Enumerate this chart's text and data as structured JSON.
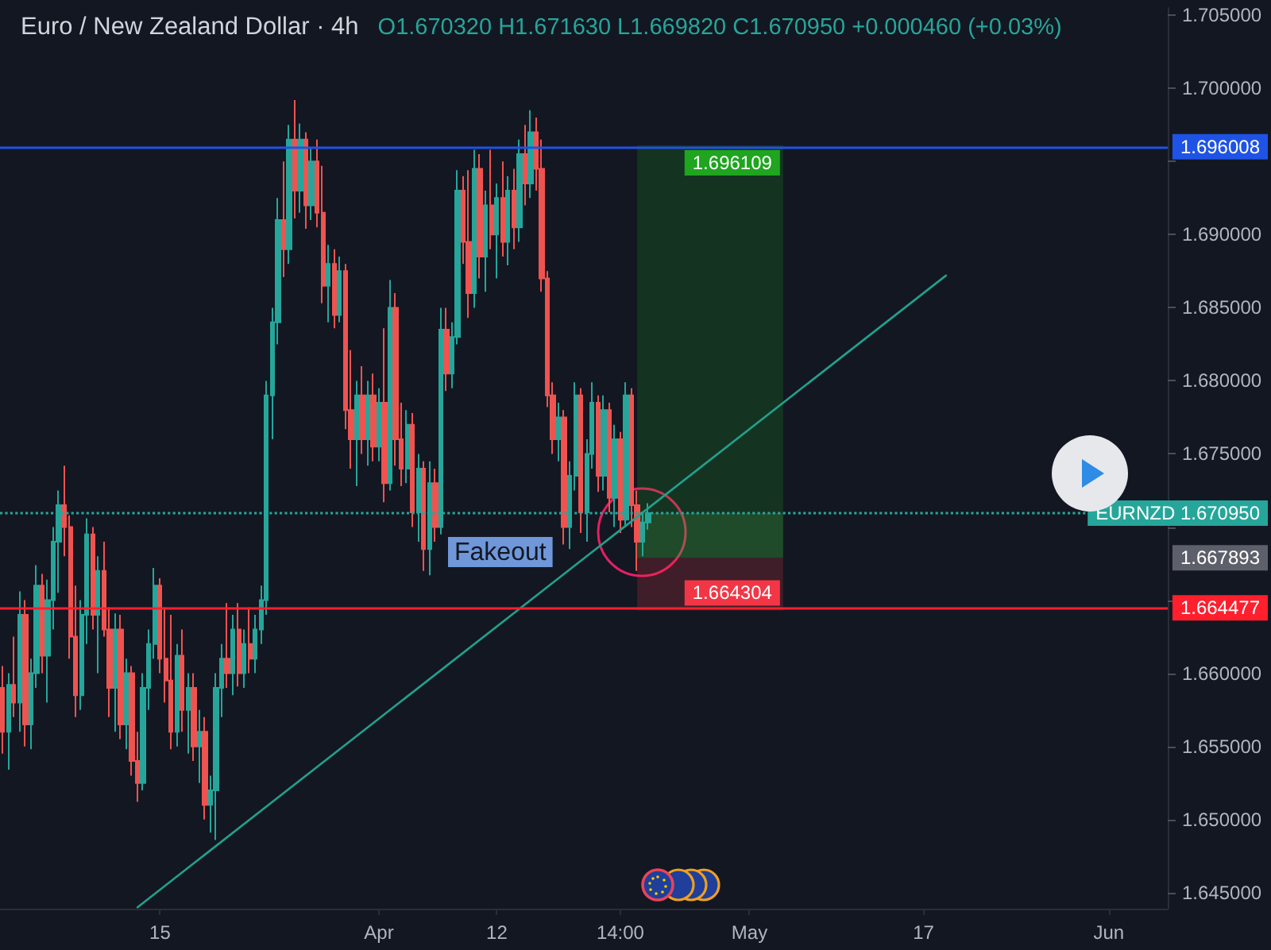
{
  "chart_data": {
    "type": "candlestick",
    "title": "Euro / New Zealand Dollar · 4h",
    "subtitle": "O1.670320 H1.671630 L1.669820 C1.670950 +0.000460 (+0.03%)",
    "categories": [
      null,
      null,
      null,
      null,
      null,
      null,
      null,
      null,
      null,
      null,
      null,
      null,
      null,
      null,
      null,
      null,
      null,
      null,
      null,
      null,
      null,
      null,
      null,
      null,
      null,
      null,
      null,
      null,
      "15",
      null,
      null,
      null,
      null,
      null,
      null,
      null,
      null,
      null,
      null,
      null,
      null,
      null,
      null,
      null,
      null,
      null,
      null,
      null,
      null,
      null,
      null,
      null,
      null,
      null,
      null,
      null,
      null,
      null,
      null,
      null,
      null,
      null,
      null,
      null,
      null,
      null,
      null,
      "Apr",
      null,
      null,
      null,
      null,
      null,
      null,
      null,
      null,
      null,
      null,
      null,
      null,
      null,
      null,
      null,
      null,
      null,
      null,
      null,
      null,
      "12",
      null,
      null,
      null,
      null,
      null,
      null,
      null,
      null,
      null,
      null,
      null,
      null,
      null,
      null,
      null,
      null,
      null,
      null,
      null,
      null,
      null,
      "14:00",
      null,
      null,
      null,
      null,
      null,
      null,
      null,
      null,
      null,
      null,
      null,
      null,
      null,
      null,
      null,
      null,
      null,
      null,
      null,
      null,
      null,
      null,
      "May",
      null,
      null,
      null,
      null,
      null,
      null,
      null,
      null,
      null,
      null,
      null,
      null,
      null,
      null,
      null,
      null,
      null,
      null,
      null,
      null,
      null,
      null,
      null,
      null,
      null,
      null,
      null,
      null,
      null,
      null,
      "17",
      null,
      null,
      null,
      null,
      null,
      null,
      null,
      null,
      null,
      null,
      null,
      null,
      null,
      null,
      null,
      null,
      null,
      null,
      null,
      null,
      null,
      null,
      null,
      null,
      null,
      null,
      null,
      null,
      null,
      null,
      null,
      null,
      "Jun",
      null,
      null,
      null,
      null,
      null,
      null,
      null,
      null,
      null,
      null
    ],
    "ohlc": [
      [
        1.659,
        1.6605,
        1.6545,
        1.656
      ],
      [
        1.656,
        1.66,
        1.6534,
        1.6592
      ],
      [
        1.6592,
        1.6625,
        1.657,
        1.658
      ],
      [
        1.658,
        1.6656,
        1.656,
        1.664
      ],
      [
        1.664,
        1.665,
        1.655,
        1.6565
      ],
      [
        1.6565,
        1.661,
        1.6548,
        1.66
      ],
      [
        1.66,
        1.6674,
        1.659,
        1.666
      ],
      [
        1.666,
        1.6668,
        1.66,
        1.6612
      ],
      [
        1.6612,
        1.6664,
        1.658,
        1.665
      ],
      [
        1.665,
        1.67,
        1.663,
        1.669
      ],
      [
        1.669,
        1.6725,
        1.6655,
        1.6715
      ],
      [
        1.6715,
        1.6742,
        1.668,
        1.67
      ],
      [
        1.67,
        1.6708,
        1.661,
        1.6625
      ],
      [
        1.6625,
        1.666,
        1.657,
        1.6585
      ],
      [
        1.6585,
        1.665,
        1.6575,
        1.664
      ],
      [
        1.664,
        1.6706,
        1.662,
        1.6695
      ],
      [
        1.6695,
        1.67,
        1.663,
        1.664
      ],
      [
        1.664,
        1.668,
        1.66,
        1.667
      ],
      [
        1.667,
        1.669,
        1.6625,
        1.663
      ],
      [
        1.663,
        1.6645,
        1.657,
        1.659
      ],
      [
        1.659,
        1.6641,
        1.656,
        1.663
      ],
      [
        1.663,
        1.664,
        1.6555,
        1.6565
      ],
      [
        1.6565,
        1.661,
        1.6548,
        1.66
      ],
      [
        1.66,
        1.6605,
        1.653,
        1.654
      ],
      [
        1.654,
        1.656,
        1.6512,
        1.6525
      ],
      [
        1.6525,
        1.66,
        1.652,
        1.659
      ],
      [
        1.659,
        1.663,
        1.6575,
        1.662
      ],
      [
        1.662,
        1.6672,
        1.661,
        1.666
      ],
      [
        1.666,
        1.6665,
        1.66,
        1.661
      ],
      [
        1.661,
        1.6645,
        1.658,
        1.6595
      ],
      [
        1.6595,
        1.664,
        1.6548,
        1.656
      ],
      [
        1.656,
        1.662,
        1.655,
        1.6612
      ],
      [
        1.6612,
        1.663,
        1.656,
        1.6575
      ],
      [
        1.6575,
        1.66,
        1.6545,
        1.659
      ],
      [
        1.659,
        1.66,
        1.654,
        1.655
      ],
      [
        1.655,
        1.6575,
        1.6525,
        1.656
      ],
      [
        1.656,
        1.657,
        1.65,
        1.651
      ],
      [
        1.651,
        1.653,
        1.6491,
        1.652
      ],
      [
        1.652,
        1.66,
        1.6486,
        1.659
      ],
      [
        1.659,
        1.662,
        1.657,
        1.661
      ],
      [
        1.661,
        1.6648,
        1.659,
        1.66
      ],
      [
        1.66,
        1.664,
        1.6585,
        1.663
      ],
      [
        1.663,
        1.6648,
        1.6591,
        1.66
      ],
      [
        1.66,
        1.663,
        1.659,
        1.662
      ],
      [
        1.662,
        1.6645,
        1.66,
        1.661
      ],
      [
        1.661,
        1.664,
        1.66,
        1.663
      ],
      [
        1.663,
        1.666,
        1.662,
        1.665
      ],
      [
        1.665,
        1.68,
        1.664,
        1.679
      ],
      [
        1.679,
        1.685,
        1.676,
        1.684
      ],
      [
        1.684,
        1.6925,
        1.6825,
        1.691
      ],
      [
        1.691,
        1.695,
        1.6871,
        1.689
      ],
      [
        1.689,
        1.6975,
        1.688,
        1.6965
      ],
      [
        1.6965,
        1.6992,
        1.6911,
        1.693
      ],
      [
        1.693,
        1.6976,
        1.6915,
        1.6965
      ],
      [
        1.6965,
        1.697,
        1.6904,
        1.692
      ],
      [
        1.692,
        1.696,
        1.691,
        1.695
      ],
      [
        1.695,
        1.6965,
        1.6905,
        1.6915
      ],
      [
        1.6915,
        1.6947,
        1.6853,
        1.6865
      ],
      [
        1.6865,
        1.6893,
        1.684,
        1.688
      ],
      [
        1.688,
        1.689,
        1.6836,
        1.6845
      ],
      [
        1.6845,
        1.6885,
        1.684,
        1.6875
      ],
      [
        1.6875,
        1.688,
        1.6767,
        1.678
      ],
      [
        1.678,
        1.6821,
        1.674,
        1.676
      ],
      [
        1.676,
        1.68,
        1.6728,
        1.679
      ],
      [
        1.679,
        1.681,
        1.675,
        1.676
      ],
      [
        1.676,
        1.68,
        1.6742,
        1.679
      ],
      [
        1.679,
        1.6805,
        1.6745,
        1.6755
      ],
      [
        1.6755,
        1.6795,
        1.6745,
        1.6785
      ],
      [
        1.6785,
        1.6836,
        1.6717,
        1.673
      ],
      [
        1.673,
        1.6869,
        1.6725,
        1.685
      ],
      [
        1.685,
        1.686,
        1.6742,
        1.676
      ],
      [
        1.676,
        1.6785,
        1.6728,
        1.674
      ],
      [
        1.674,
        1.678,
        1.673,
        1.677
      ],
      [
        1.677,
        1.6778,
        1.67,
        1.671
      ],
      [
        1.671,
        1.675,
        1.669,
        1.674
      ],
      [
        1.674,
        1.6745,
        1.667,
        1.6685
      ],
      [
        1.6685,
        1.6745,
        1.6667,
        1.673
      ],
      [
        1.673,
        1.674,
        1.669,
        1.67
      ],
      [
        1.67,
        1.685,
        1.6695,
        1.6835
      ],
      [
        1.6835,
        1.685,
        1.6793,
        1.6805
      ],
      [
        1.6805,
        1.684,
        1.6795,
        1.683
      ],
      [
        1.683,
        1.6944,
        1.6825,
        1.693
      ],
      [
        1.693,
        1.694,
        1.688,
        1.6895
      ],
      [
        1.6895,
        1.6944,
        1.6843,
        1.686
      ],
      [
        1.686,
        1.6958,
        1.685,
        1.6945
      ],
      [
        1.6945,
        1.6955,
        1.687,
        1.6885
      ],
      [
        1.6885,
        1.693,
        1.6861,
        1.692
      ],
      [
        1.692,
        1.6958,
        1.689,
        1.69
      ],
      [
        1.69,
        1.6935,
        1.687,
        1.6925
      ],
      [
        1.6925,
        1.695,
        1.6885,
        1.6895
      ],
      [
        1.6895,
        1.694,
        1.6879,
        1.693
      ],
      [
        1.693,
        1.6945,
        1.689,
        1.6905
      ],
      [
        1.6905,
        1.6965,
        1.6895,
        1.6955
      ],
      [
        1.6955,
        1.6975,
        1.692,
        1.6935
      ],
      [
        1.6935,
        1.6985,
        1.6925,
        1.697
      ],
      [
        1.697,
        1.698,
        1.693,
        1.6945
      ],
      [
        1.6945,
        1.6965,
        1.6861,
        1.687
      ],
      [
        1.687,
        1.6875,
        1.6782,
        1.679
      ],
      [
        1.679,
        1.6799,
        1.675,
        1.676
      ],
      [
        1.676,
        1.6785,
        1.6745,
        1.6775
      ],
      [
        1.6775,
        1.678,
        1.6688,
        1.67
      ],
      [
        1.67,
        1.6745,
        1.6685,
        1.6735
      ],
      [
        1.6735,
        1.6799,
        1.6725,
        1.679
      ],
      [
        1.679,
        1.6795,
        1.6696,
        1.671
      ],
      [
        1.671,
        1.676,
        1.669,
        1.675
      ],
      [
        1.675,
        1.6799,
        1.674,
        1.6785
      ],
      [
        1.6785,
        1.679,
        1.6724,
        1.6735
      ],
      [
        1.6735,
        1.679,
        1.6725,
        1.678
      ],
      [
        1.678,
        1.6785,
        1.671,
        1.672
      ],
      [
        1.672,
        1.677,
        1.67,
        1.676
      ],
      [
        1.676,
        1.6765,
        1.6696,
        1.6705
      ],
      [
        1.6705,
        1.6799,
        1.67,
        1.679
      ],
      [
        1.679,
        1.6795,
        1.67,
        1.6715
      ],
      [
        1.6715,
        1.6725,
        1.667,
        1.669
      ],
      [
        1.669,
        1.671,
        1.668,
        1.67032
      ],
      [
        1.67032,
        1.67163,
        1.66982,
        1.67095
      ],
      null,
      null,
      null,
      null,
      null,
      null,
      null,
      null,
      null,
      null,
      null,
      null,
      null,
      null,
      null,
      null,
      null,
      null,
      null,
      null,
      null,
      null,
      null,
      null,
      null,
      null,
      null,
      null,
      null,
      null,
      null,
      null,
      null,
      null,
      null,
      null,
      null,
      null,
      null,
      null,
      null,
      null,
      null,
      null,
      null,
      null,
      null,
      null,
      null,
      null,
      null,
      null,
      null,
      null,
      null,
      null,
      null,
      null,
      null,
      null,
      null,
      null,
      null,
      null,
      null,
      null,
      null,
      null,
      null,
      null,
      null,
      null,
      null,
      null,
      null,
      null,
      null,
      null,
      null,
      null,
      null,
      null,
      null,
      null,
      null,
      null,
      null,
      null,
      null,
      null,
      null,
      null
    ],
    "colors": [
      "#ef5350",
      "#26a69a",
      "#ef5350",
      "#26a69a",
      "#ef5350",
      "#26a69a",
      "#26a69a",
      "#ef5350",
      "#26a69a",
      "#26a69a",
      "#26a69a",
      "#ef5350",
      "#ef5350",
      "#ef5350",
      "#26a69a",
      "#26a69a",
      "#ef5350",
      "#26a69a",
      "#ef5350",
      "#ef5350",
      "#26a69a",
      "#ef5350",
      "#26a69a",
      "#ef5350",
      "#ef5350",
      "#26a69a",
      "#26a69a",
      "#26a69a",
      "#ef5350",
      "#ef5350",
      "#ef5350",
      "#26a69a",
      "#ef5350",
      "#26a69a",
      "#ef5350",
      "#26a69a",
      "#ef5350",
      "#26a69a",
      "#26a69a",
      "#26a69a",
      "#ef5350",
      "#26a69a",
      "#ef5350",
      "#26a69a",
      "#ef5350",
      "#26a69a",
      "#26a69a",
      "#26a69a",
      "#26a69a",
      "#26a69a",
      "#ef5350",
      "#26a69a",
      "#ef5350",
      "#26a69a",
      "#ef5350",
      "#26a69a",
      "#ef5350",
      "#ef5350",
      "#26a69a",
      "#ef5350",
      "#26a69a",
      "#ef5350",
      "#ef5350",
      "#26a69a",
      "#ef5350",
      "#26a69a",
      "#ef5350",
      "#26a69a",
      "#ef5350",
      "#26a69a",
      "#ef5350",
      "#ef5350",
      "#26a69a",
      "#ef5350",
      "#26a69a",
      "#ef5350",
      "#26a69a",
      "#ef5350",
      "#26a69a",
      "#ef5350",
      "#26a69a",
      "#26a69a",
      "#ef5350",
      "#ef5350",
      "#26a69a",
      "#ef5350",
      "#26a69a",
      "#ef5350",
      "#26a69a",
      "#ef5350",
      "#26a69a",
      "#ef5350",
      "#26a69a",
      "#ef5350",
      "#26a69a",
      "#ef5350",
      "#ef5350",
      "#ef5350",
      "#ef5350",
      "#26a69a",
      "#ef5350",
      "#26a69a",
      "#26a69a",
      "#ef5350",
      "#26a69a",
      "#26a69a",
      "#ef5350",
      "#26a69a",
      "#ef5350",
      "#26a69a",
      "#ef5350",
      "#26a69a",
      "#ef5350",
      "#ef5350",
      "#26a69a",
      "#26a69a",
      null,
      null,
      null,
      null,
      null,
      null,
      null,
      null,
      null,
      null,
      null,
      null,
      null,
      null,
      null,
      null,
      null,
      null,
      null,
      null,
      null,
      null,
      null,
      null,
      null,
      null,
      null,
      null,
      null,
      null,
      null,
      null,
      null,
      null,
      null,
      null,
      null,
      null,
      null,
      null,
      null,
      null,
      null,
      null,
      null,
      null,
      null,
      null,
      null,
      null,
      null,
      null,
      null,
      null,
      null,
      null,
      null,
      null,
      null,
      null,
      null,
      null,
      null,
      null,
      null,
      null,
      null,
      null,
      null,
      null,
      null,
      null,
      null,
      null,
      null,
      null,
      null,
      null,
      null,
      null,
      null,
      null,
      null,
      null,
      null,
      null,
      null,
      null,
      null,
      null,
      null,
      null
    ],
    "series": [
      {
        "type": "line",
        "color": "#22a08c",
        "values": [
          null,
          null,
          null,
          null,
          null,
          null,
          null,
          null,
          null,
          null,
          null,
          null,
          null,
          null,
          null,
          null,
          null,
          null,
          null,
          null,
          null,
          null,
          null,
          null,
          1.644,
          null,
          null,
          null,
          null,
          null,
          null,
          null,
          null,
          null,
          null,
          null,
          null,
          null,
          null,
          null,
          null,
          null,
          null,
          null,
          null,
          null,
          null,
          null,
          null,
          null,
          null,
          null,
          null,
          null,
          null,
          null,
          null,
          null,
          null,
          null,
          null,
          null,
          null,
          null,
          null,
          null,
          null,
          null,
          null,
          null,
          null,
          null,
          null,
          null,
          null,
          null,
          null,
          null,
          null,
          null,
          null,
          null,
          null,
          null,
          null,
          null,
          null,
          null,
          null,
          null,
          null,
          null,
          null,
          null,
          null,
          null,
          null,
          null,
          null,
          null,
          null,
          null,
          null,
          null,
          null,
          null,
          null,
          null,
          null,
          null,
          null,
          null,
          null,
          null,
          null,
          null,
          null,
          null,
          null,
          null,
          null,
          null,
          null,
          null,
          null,
          null,
          null,
          null,
          null,
          null,
          null,
          null,
          null,
          null,
          null,
          null,
          null,
          null,
          null,
          null,
          null,
          null,
          null,
          null,
          null,
          null,
          null,
          null,
          null,
          null,
          null,
          null,
          null,
          null,
          null,
          null,
          null,
          null,
          null,
          null,
          null,
          null,
          null,
          null,
          null,
          null,
          null,
          null,
          1.6872,
          null,
          null,
          null,
          null,
          null,
          null,
          null,
          null,
          null,
          null,
          null,
          null,
          null,
          null,
          null,
          null,
          null,
          null,
          null,
          null,
          null,
          null,
          null,
          null,
          null,
          null,
          null,
          null,
          null,
          null,
          null,
          null,
          null,
          null,
          null,
          null,
          null,
          null,
          null
        ]
      }
    ],
    "ylim": [
      1.6439,
      1.7055
    ],
    "yticks": [
      {
        "value": 1.645,
        "label": "1.645000"
      },
      {
        "value": 1.65,
        "label": "1.650000"
      },
      {
        "value": 1.655,
        "label": "1.655000"
      },
      {
        "value": 1.66,
        "label": "1.660000"
      },
      {
        "value": 1.665,
        "label": null
      },
      {
        "value": 1.67,
        "label": null
      },
      {
        "value": 1.675,
        "label": "1.675000"
      },
      {
        "value": 1.68,
        "label": "1.680000"
      },
      {
        "value": 1.685,
        "label": "1.685000"
      },
      {
        "value": 1.69,
        "label": "1.690000"
      },
      {
        "value": 1.695,
        "label": null
      },
      {
        "value": 1.7,
        "label": "1.700000"
      },
      {
        "value": 1.705,
        "label": "1.705000"
      }
    ],
    "grid": false,
    "marker": "none",
    "ref_lines": [
      {
        "axis": "y",
        "value": 1.696008,
        "label": "1.696008",
        "color": "#1e53e5"
      },
      {
        "axis": "y",
        "value": 1.664477,
        "label": "1.664477",
        "color": "#ff1f2d"
      },
      {
        "axis": "y",
        "value": 1.67095,
        "label": "EURNZD 1.670950",
        "color": "#26a69a",
        "line_style": "dotted"
      }
    ],
    "bands": [
      {
        "axis": "y",
        "from": 1.667893,
        "to": 1.696109,
        "label": "1.696109",
        "color": "#1fa51f"
      },
      {
        "axis": "y",
        "from": 1.667893,
        "to": 1.67095,
        "color": "#4caf50"
      },
      {
        "axis": "y",
        "from": 1.667893,
        "to": 1.664304,
        "label": "1.664304",
        "color": "#f23645"
      }
    ],
    "annotations": [
      "1.667893",
      "Fakeout"
    ]
  }
}
